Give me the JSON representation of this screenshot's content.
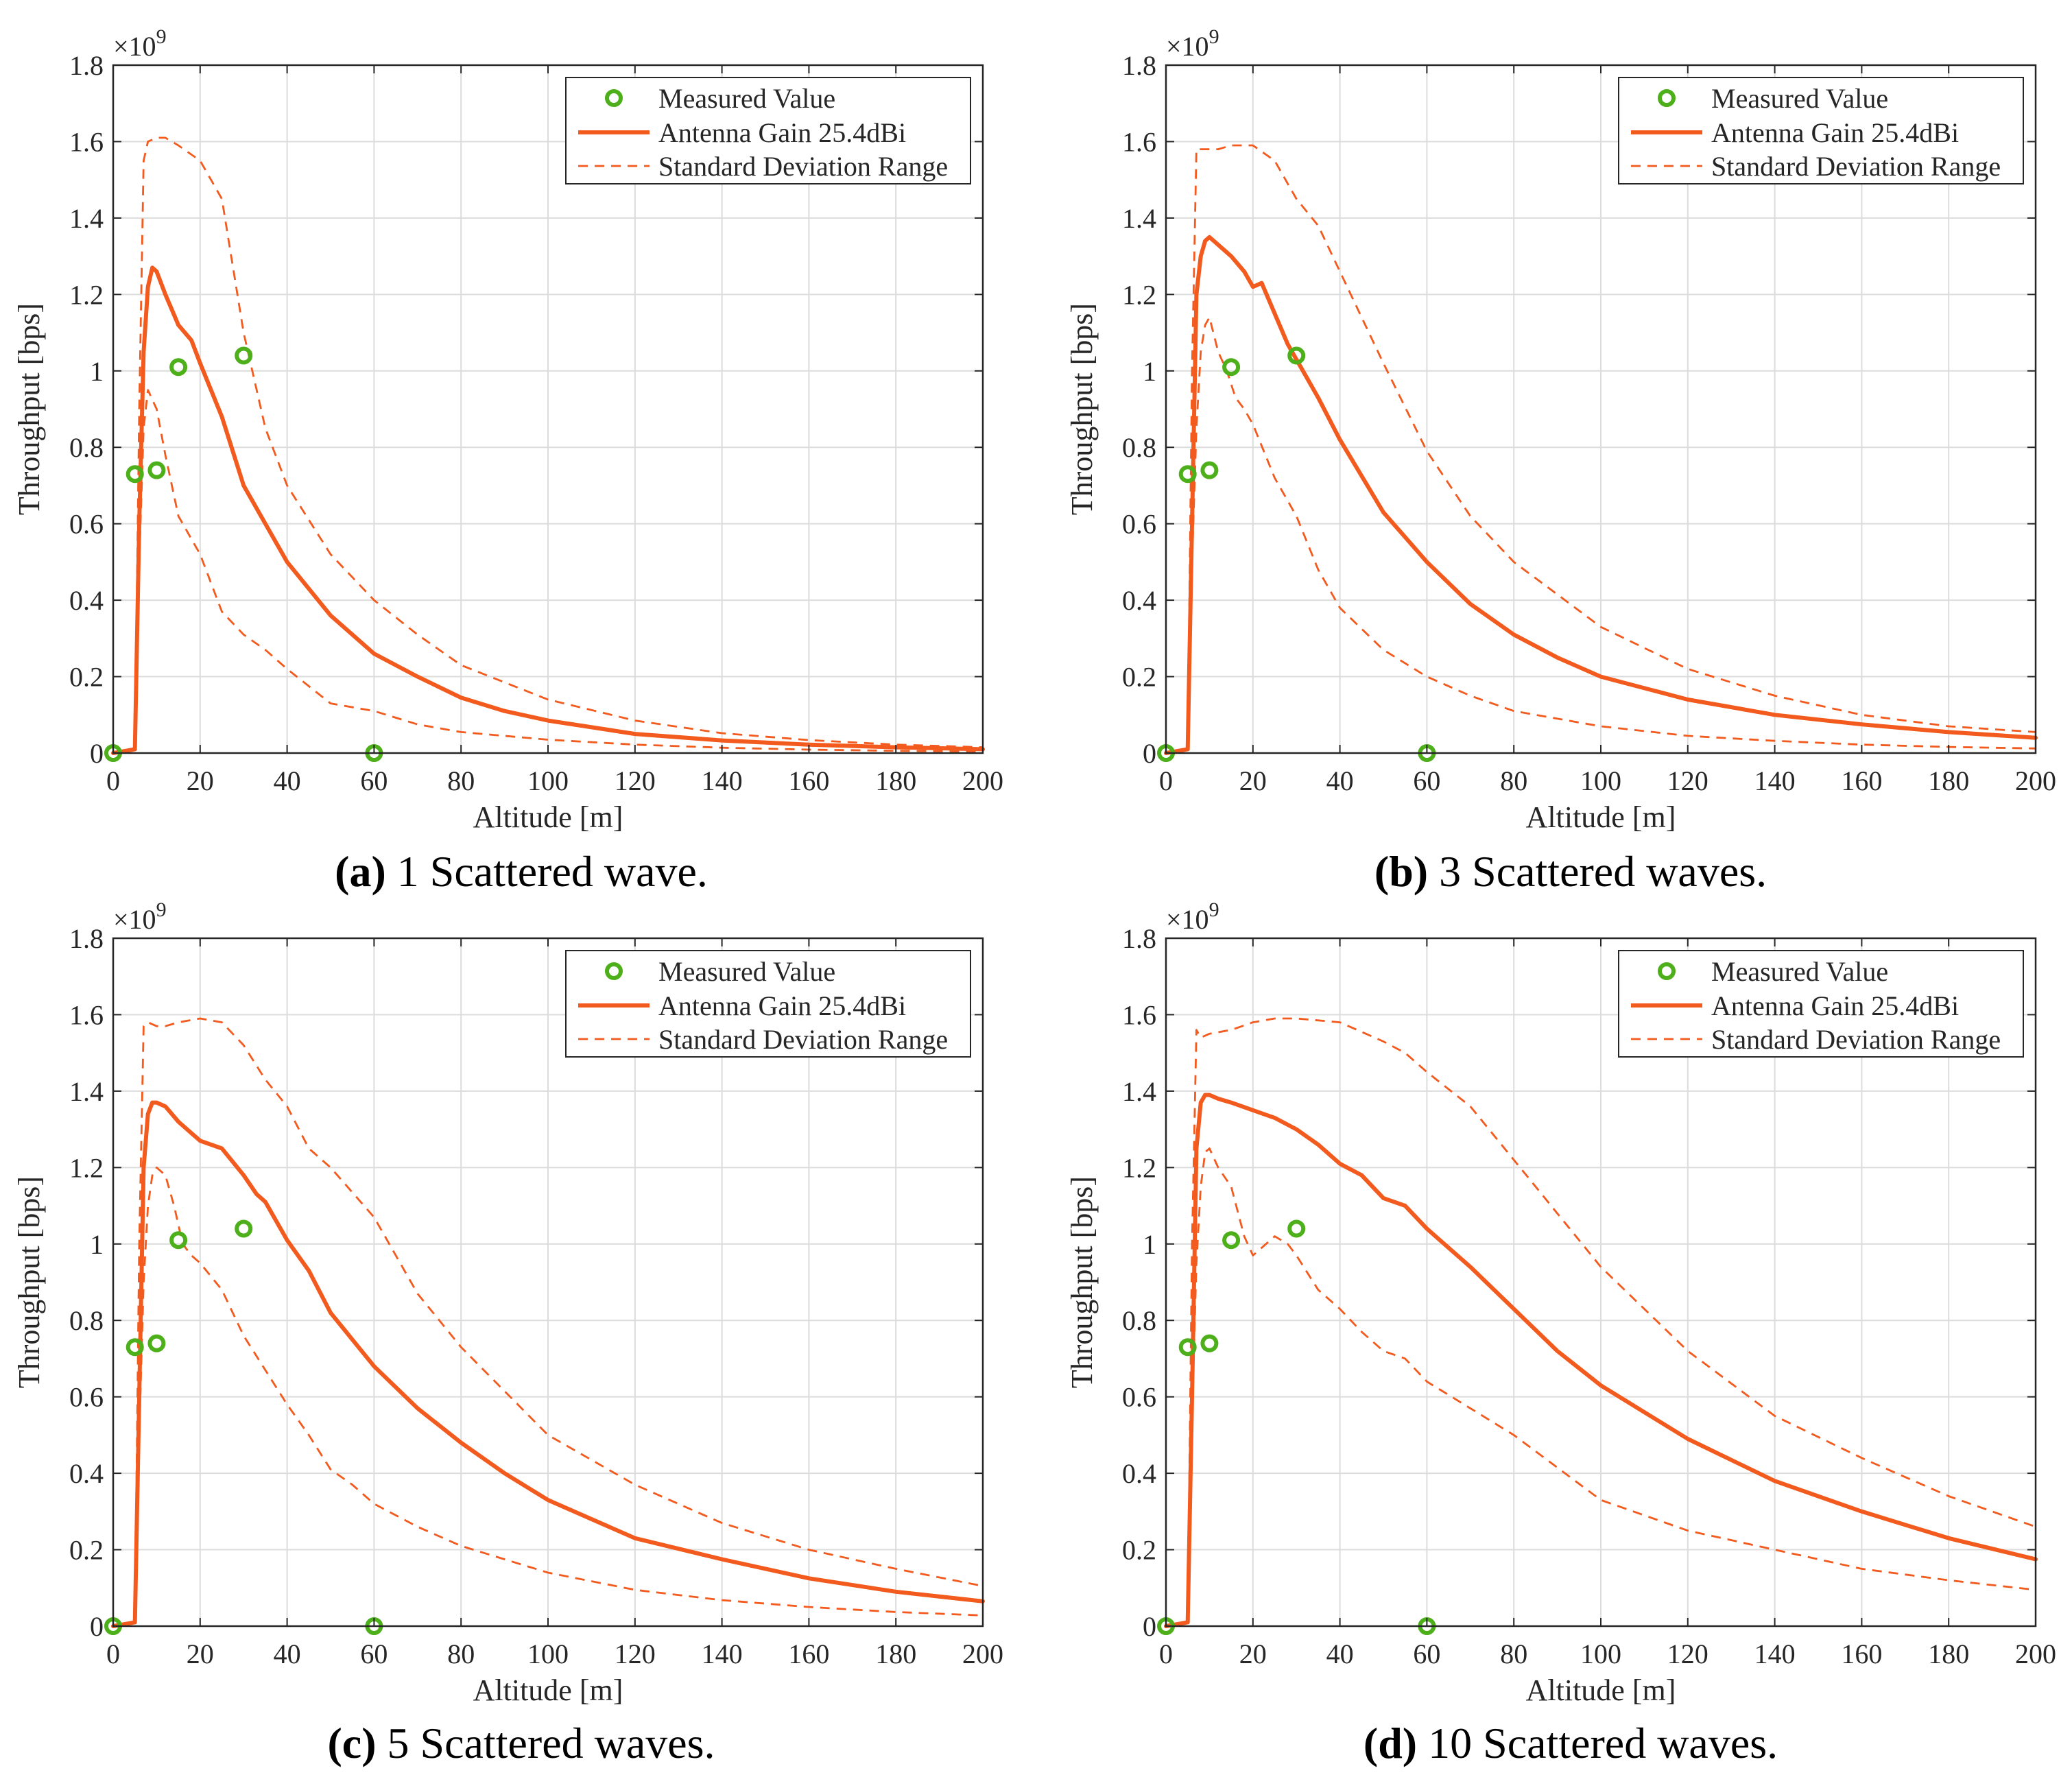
{
  "figure": {
    "colors": {
      "measured": "#4daf1a",
      "gain": "#f25a1e",
      "grid": "#dcdcdc",
      "axis": "#262626"
    }
  },
  "chart_data": [
    {
      "type": "line",
      "caption_letter": "(a)",
      "caption_text": " 1 Scattered wave.",
      "xlabel": "Altitude [m]",
      "ylabel": "Throughput [bps]",
      "y_exponent": "×10",
      "y_exponent_power": "9",
      "xlim": [
        0,
        200
      ],
      "ylim": [
        0,
        1.8
      ],
      "xticks": [
        "0",
        "20",
        "40",
        "60",
        "80",
        "100",
        "120",
        "140",
        "160",
        "180",
        "200"
      ],
      "yticks": [
        "0",
        "0.2",
        "0.4",
        "0.6",
        "0.8",
        "1",
        "1.2",
        "1.4",
        "1.6",
        "1.8"
      ],
      "grid": true,
      "legend_position": "top-right",
      "legend": [
        "Measured Value",
        "Antenna Gain 25.4dBi",
        "Standard Deviation Range"
      ],
      "series": [
        {
          "name": "Measured Value",
          "kind": "marker",
          "x": [
            0,
            5,
            10,
            15,
            30,
            60
          ],
          "y": [
            0,
            0.73,
            0.74,
            1.01,
            1.04,
            0
          ]
        },
        {
          "name": "Antenna Gain 25.4dBi",
          "kind": "solid",
          "x": [
            0,
            5,
            6,
            7,
            8,
            9,
            10,
            12,
            15,
            18,
            20,
            25,
            30,
            35,
            40,
            50,
            60,
            70,
            80,
            90,
            100,
            120,
            140,
            160,
            180,
            200
          ],
          "y": [
            0,
            0.01,
            0.6,
            1.05,
            1.22,
            1.27,
            1.26,
            1.2,
            1.12,
            1.08,
            1.02,
            0.88,
            0.7,
            0.6,
            0.5,
            0.36,
            0.26,
            0.2,
            0.145,
            0.11,
            0.085,
            0.05,
            0.033,
            0.022,
            0.015,
            0.01
          ]
        },
        {
          "name": "Standard Deviation Range",
          "kind": "dashed",
          "x": [
            0,
            5,
            6,
            7,
            8,
            10,
            12,
            15,
            20,
            25,
            30,
            35,
            40,
            50,
            60,
            70,
            80,
            100,
            120,
            140,
            160,
            180,
            200
          ],
          "y": [
            0,
            0.01,
            0.9,
            1.55,
            1.6,
            1.61,
            1.61,
            1.59,
            1.55,
            1.45,
            1.1,
            0.85,
            0.7,
            0.52,
            0.4,
            0.31,
            0.23,
            0.14,
            0.085,
            0.052,
            0.034,
            0.022,
            0.015
          ]
        },
        {
          "name": "Standard Deviation Range",
          "kind": "dashed",
          "x": [
            0,
            5,
            6,
            7,
            8,
            10,
            12,
            15,
            20,
            25,
            30,
            35,
            40,
            50,
            60,
            70,
            80,
            100,
            120,
            140,
            160,
            180,
            200
          ],
          "y": [
            0,
            0.01,
            0.5,
            0.85,
            0.95,
            0.9,
            0.78,
            0.62,
            0.52,
            0.37,
            0.31,
            0.27,
            0.22,
            0.13,
            0.11,
            0.075,
            0.055,
            0.035,
            0.022,
            0.014,
            0.009,
            0.006,
            0.004
          ]
        }
      ]
    },
    {
      "type": "line",
      "caption_letter": "(b)",
      "caption_text": " 3 Scattered waves.",
      "xlabel": "Altitude [m]",
      "ylabel": "Throughput [bps]",
      "y_exponent": "×10",
      "y_exponent_power": "9",
      "xlim": [
        0,
        200
      ],
      "ylim": [
        0,
        1.8
      ],
      "xticks": [
        "0",
        "20",
        "40",
        "60",
        "80",
        "100",
        "120",
        "140",
        "160",
        "180",
        "200"
      ],
      "yticks": [
        "0",
        "0.2",
        "0.4",
        "0.6",
        "0.8",
        "1",
        "1.2",
        "1.4",
        "1.6",
        "1.8"
      ],
      "grid": true,
      "legend_position": "top-right",
      "legend": [
        "Measured Value",
        "Antenna Gain 25.4dBi",
        "Standard Deviation Range"
      ],
      "series": [
        {
          "name": "Measured Value",
          "kind": "marker",
          "x": [
            0,
            5,
            10,
            15,
            30,
            60
          ],
          "y": [
            0,
            0.73,
            0.74,
            1.01,
            1.04,
            0
          ]
        },
        {
          "name": "Antenna Gain 25.4dBi",
          "kind": "solid",
          "x": [
            0,
            5,
            6,
            7,
            8,
            9,
            10,
            12,
            15,
            18,
            20,
            22,
            25,
            28,
            30,
            35,
            40,
            50,
            60,
            70,
            80,
            90,
            100,
            120,
            140,
            160,
            180,
            200
          ],
          "y": [
            0,
            0.01,
            0.6,
            1.2,
            1.3,
            1.34,
            1.35,
            1.33,
            1.3,
            1.26,
            1.22,
            1.23,
            1.15,
            1.07,
            1.03,
            0.93,
            0.82,
            0.63,
            0.5,
            0.39,
            0.31,
            0.25,
            0.2,
            0.14,
            0.1,
            0.075,
            0.055,
            0.04
          ]
        },
        {
          "name": "Standard Deviation Range",
          "kind": "dashed",
          "x": [
            0,
            5,
            6,
            7,
            8,
            10,
            12,
            15,
            18,
            20,
            25,
            30,
            35,
            40,
            50,
            60,
            70,
            80,
            100,
            120,
            140,
            160,
            180,
            200
          ],
          "y": [
            0,
            0.01,
            1.0,
            1.58,
            1.58,
            1.58,
            1.58,
            1.59,
            1.59,
            1.59,
            1.55,
            1.45,
            1.38,
            1.26,
            1.02,
            0.79,
            0.62,
            0.5,
            0.33,
            0.22,
            0.15,
            0.1,
            0.07,
            0.055
          ]
        },
        {
          "name": "Standard Deviation Range",
          "kind": "dashed",
          "x": [
            0,
            5,
            6,
            7,
            8,
            9,
            10,
            12,
            14,
            16,
            18,
            20,
            25,
            30,
            35,
            40,
            50,
            60,
            70,
            80,
            100,
            120,
            140,
            160,
            180,
            200
          ],
          "y": [
            0,
            0.01,
            0.5,
            0.85,
            1.05,
            1.12,
            1.14,
            1.05,
            1.0,
            0.93,
            0.9,
            0.86,
            0.72,
            0.62,
            0.48,
            0.38,
            0.27,
            0.2,
            0.15,
            0.11,
            0.07,
            0.045,
            0.032,
            0.022,
            0.016,
            0.012
          ]
        }
      ]
    },
    {
      "type": "line",
      "caption_letter": "(c)",
      "caption_text": " 5 Scattered waves.",
      "xlabel": "Altitude [m]",
      "ylabel": "Throughput [bps]",
      "y_exponent": "×10",
      "y_exponent_power": "9",
      "xlim": [
        0,
        200
      ],
      "ylim": [
        0,
        1.8
      ],
      "xticks": [
        "0",
        "20",
        "40",
        "60",
        "80",
        "100",
        "120",
        "140",
        "160",
        "180",
        "200"
      ],
      "yticks": [
        "0",
        "0.2",
        "0.4",
        "0.6",
        "0.8",
        "1",
        "1.2",
        "1.4",
        "1.6",
        "1.8"
      ],
      "grid": true,
      "legend_position": "top-right",
      "legend": [
        "Measured Value",
        "Antenna Gain 25.4dBi",
        "Standard Deviation Range"
      ],
      "series": [
        {
          "name": "Measured Value",
          "kind": "marker",
          "x": [
            0,
            5,
            10,
            15,
            30,
            60
          ],
          "y": [
            0,
            0.73,
            0.74,
            1.01,
            1.04,
            0
          ]
        },
        {
          "name": "Antenna Gain 25.4dBi",
          "kind": "solid",
          "x": [
            0,
            5,
            6,
            7,
            8,
            9,
            10,
            12,
            15,
            18,
            20,
            25,
            30,
            33,
            35,
            40,
            45,
            50,
            60,
            70,
            80,
            90,
            100,
            120,
            140,
            160,
            180,
            200
          ],
          "y": [
            0,
            0.01,
            0.6,
            1.2,
            1.34,
            1.37,
            1.37,
            1.36,
            1.32,
            1.29,
            1.27,
            1.25,
            1.18,
            1.13,
            1.11,
            1.01,
            0.93,
            0.82,
            0.68,
            0.57,
            0.48,
            0.4,
            0.33,
            0.23,
            0.175,
            0.125,
            0.09,
            0.065
          ]
        },
        {
          "name": "Standard Deviation Range",
          "kind": "dashed",
          "x": [
            0,
            5,
            6,
            7,
            8,
            10,
            12,
            15,
            20,
            25,
            30,
            35,
            40,
            45,
            50,
            60,
            70,
            80,
            100,
            120,
            140,
            160,
            180,
            200
          ],
          "y": [
            0,
            0.01,
            1.0,
            1.57,
            1.58,
            1.57,
            1.57,
            1.58,
            1.59,
            1.58,
            1.52,
            1.43,
            1.36,
            1.25,
            1.2,
            1.07,
            0.87,
            0.73,
            0.5,
            0.37,
            0.27,
            0.2,
            0.15,
            0.105
          ]
        },
        {
          "name": "Standard Deviation Range",
          "kind": "dashed",
          "x": [
            0,
            5,
            6,
            7,
            8,
            9,
            10,
            12,
            14,
            16,
            18,
            20,
            25,
            30,
            35,
            40,
            45,
            50,
            55,
            60,
            65,
            70,
            80,
            100,
            120,
            140,
            160,
            180,
            200
          ],
          "y": [
            0,
            0.01,
            0.5,
            0.9,
            1.1,
            1.18,
            1.2,
            1.18,
            1.1,
            1.0,
            0.97,
            0.95,
            0.88,
            0.76,
            0.67,
            0.58,
            0.5,
            0.41,
            0.37,
            0.32,
            0.29,
            0.26,
            0.21,
            0.14,
            0.095,
            0.068,
            0.05,
            0.037,
            0.028
          ]
        }
      ]
    },
    {
      "type": "line",
      "caption_letter": "(d)",
      "caption_text": " 10 Scattered waves.",
      "xlabel": "Altitude [m]",
      "ylabel": "Throughput [bps]",
      "y_exponent": "×10",
      "y_exponent_power": "9",
      "xlim": [
        0,
        200
      ],
      "ylim": [
        0,
        1.8
      ],
      "xticks": [
        "0",
        "20",
        "40",
        "60",
        "80",
        "100",
        "120",
        "140",
        "160",
        "180",
        "200"
      ],
      "yticks": [
        "0",
        "0.2",
        "0.4",
        "0.6",
        "0.8",
        "1",
        "1.2",
        "1.4",
        "1.6",
        "1.8"
      ],
      "grid": true,
      "legend_position": "top-right",
      "legend": [
        "Measured Value",
        "Antenna Gain 25.4dBi",
        "Standard Deviation Range"
      ],
      "series": [
        {
          "name": "Measured Value",
          "kind": "marker",
          "x": [
            0,
            5,
            10,
            15,
            30,
            60
          ],
          "y": [
            0,
            0.73,
            0.74,
            1.01,
            1.04,
            0
          ]
        },
        {
          "name": "Antenna Gain 25.4dBi",
          "kind": "solid",
          "x": [
            0,
            5,
            6,
            7,
            8,
            9,
            10,
            12,
            15,
            20,
            25,
            30,
            35,
            40,
            45,
            50,
            55,
            60,
            70,
            80,
            90,
            100,
            120,
            140,
            160,
            180,
            200
          ],
          "y": [
            0,
            0.01,
            0.6,
            1.25,
            1.37,
            1.39,
            1.39,
            1.38,
            1.37,
            1.35,
            1.33,
            1.3,
            1.26,
            1.21,
            1.18,
            1.12,
            1.1,
            1.04,
            0.94,
            0.83,
            0.72,
            0.63,
            0.49,
            0.38,
            0.3,
            0.23,
            0.175
          ]
        },
        {
          "name": "Standard Deviation Range",
          "kind": "dashed",
          "x": [
            0,
            5,
            6,
            7,
            8,
            10,
            15,
            20,
            25,
            30,
            40,
            50,
            55,
            60,
            70,
            80,
            90,
            100,
            120,
            140,
            160,
            180,
            200
          ],
          "y": [
            0,
            0.01,
            1.0,
            1.56,
            1.54,
            1.55,
            1.56,
            1.58,
            1.59,
            1.59,
            1.58,
            1.53,
            1.5,
            1.45,
            1.36,
            1.22,
            1.08,
            0.94,
            0.72,
            0.55,
            0.44,
            0.34,
            0.26
          ]
        },
        {
          "name": "Standard Deviation Range",
          "kind": "dashed",
          "x": [
            0,
            5,
            6,
            7,
            8,
            9,
            10,
            12,
            15,
            18,
            20,
            25,
            28,
            30,
            35,
            40,
            45,
            50,
            55,
            60,
            70,
            80,
            100,
            120,
            140,
            160,
            180,
            200
          ],
          "y": [
            0,
            0.01,
            0.55,
            0.95,
            1.15,
            1.24,
            1.25,
            1.2,
            1.15,
            1.02,
            0.97,
            1.02,
            1.0,
            0.97,
            0.88,
            0.83,
            0.77,
            0.72,
            0.7,
            0.64,
            0.57,
            0.5,
            0.33,
            0.25,
            0.2,
            0.15,
            0.12,
            0.095
          ]
        }
      ]
    }
  ]
}
